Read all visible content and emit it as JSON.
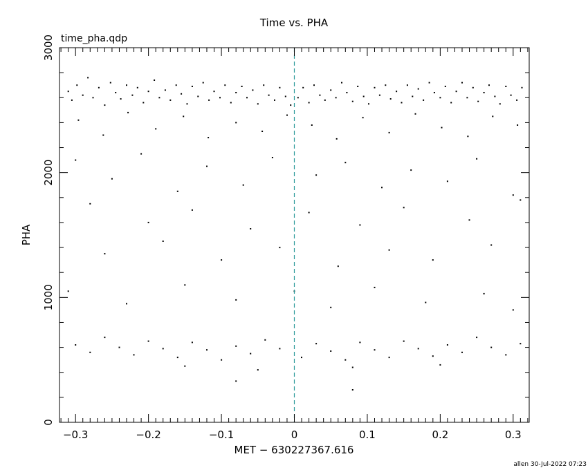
{
  "chart_data": {
    "type": "scatter",
    "title": "Time vs. PHA",
    "subtitle": "time_pha.qdp",
    "xlabel": "MET − 630227367.616",
    "ylabel": "PHA",
    "xlim": [
      -0.322,
      0.322
    ],
    "ylim": [
      0,
      3000
    ],
    "x_ticks": [
      {
        "value": -0.3,
        "label": "−0.3"
      },
      {
        "value": -0.2,
        "label": "−0.2"
      },
      {
        "value": -0.1,
        "label": "−0.1"
      },
      {
        "value": 0,
        "label": "0"
      },
      {
        "value": 0.1,
        "label": "0.1"
      },
      {
        "value": 0.2,
        "label": "0.2"
      },
      {
        "value": 0.3,
        "label": "0.3"
      }
    ],
    "y_ticks": [
      {
        "value": 0,
        "label": "0"
      },
      {
        "value": 1000,
        "label": "1000"
      },
      {
        "value": 2000,
        "label": "2000"
      },
      {
        "value": 3000,
        "label": "3000"
      }
    ],
    "reference_line": {
      "x": 0,
      "color": "#2a9a9a",
      "style": "dashed"
    },
    "point_color": "#000000",
    "grid": false,
    "series": [
      {
        "points": [
          [
            -0.31,
            2650
          ],
          [
            -0.305,
            2580
          ],
          [
            -0.298,
            2700
          ],
          [
            -0.29,
            2620
          ],
          [
            -0.283,
            2760
          ],
          [
            -0.276,
            2600
          ],
          [
            -0.268,
            2680
          ],
          [
            -0.26,
            2540
          ],
          [
            -0.252,
            2720
          ],
          [
            -0.245,
            2640
          ],
          [
            -0.238,
            2590
          ],
          [
            -0.23,
            2700
          ],
          [
            -0.222,
            2620
          ],
          [
            -0.215,
            2680
          ],
          [
            -0.207,
            2560
          ],
          [
            -0.2,
            2650
          ],
          [
            -0.192,
            2740
          ],
          [
            -0.185,
            2600
          ],
          [
            -0.177,
            2660
          ],
          [
            -0.17,
            2580
          ],
          [
            -0.162,
            2700
          ],
          [
            -0.155,
            2630
          ],
          [
            -0.147,
            2550
          ],
          [
            -0.14,
            2690
          ],
          [
            -0.132,
            2610
          ],
          [
            -0.125,
            2720
          ],
          [
            -0.117,
            2580
          ],
          [
            -0.11,
            2650
          ],
          [
            -0.102,
            2600
          ],
          [
            -0.095,
            2700
          ],
          [
            -0.087,
            2560
          ],
          [
            -0.08,
            2640
          ],
          [
            -0.072,
            2690
          ],
          [
            -0.065,
            2600
          ],
          [
            -0.057,
            2660
          ],
          [
            -0.05,
            2550
          ],
          [
            -0.042,
            2700
          ],
          [
            -0.035,
            2620
          ],
          [
            -0.027,
            2580
          ],
          [
            -0.02,
            2680
          ],
          [
            -0.012,
            2610
          ],
          [
            -0.005,
            2540
          ],
          [
            0.005,
            2600
          ],
          [
            0.012,
            2680
          ],
          [
            0.02,
            2560
          ],
          [
            0.027,
            2700
          ],
          [
            0.035,
            2620
          ],
          [
            0.042,
            2580
          ],
          [
            0.05,
            2660
          ],
          [
            0.057,
            2600
          ],
          [
            0.065,
            2720
          ],
          [
            0.072,
            2640
          ],
          [
            0.08,
            2570
          ],
          [
            0.087,
            2690
          ],
          [
            0.095,
            2610
          ],
          [
            0.102,
            2550
          ],
          [
            0.11,
            2680
          ],
          [
            0.117,
            2620
          ],
          [
            0.125,
            2700
          ],
          [
            0.132,
            2590
          ],
          [
            0.14,
            2650
          ],
          [
            0.147,
            2560
          ],
          [
            0.155,
            2700
          ],
          [
            0.162,
            2610
          ],
          [
            0.17,
            2670
          ],
          [
            0.177,
            2580
          ],
          [
            0.185,
            2720
          ],
          [
            0.192,
            2640
          ],
          [
            0.2,
            2600
          ],
          [
            0.207,
            2690
          ],
          [
            0.215,
            2560
          ],
          [
            0.222,
            2650
          ],
          [
            0.23,
            2720
          ],
          [
            0.237,
            2600
          ],
          [
            0.245,
            2680
          ],
          [
            0.252,
            2570
          ],
          [
            0.26,
            2640
          ],
          [
            0.267,
            2700
          ],
          [
            0.275,
            2610
          ],
          [
            0.282,
            2550
          ],
          [
            0.29,
            2690
          ],
          [
            0.297,
            2620
          ],
          [
            0.305,
            2580
          ],
          [
            0.312,
            2680
          ],
          [
            -0.296,
            2420
          ],
          [
            -0.262,
            2300
          ],
          [
            -0.228,
            2480
          ],
          [
            -0.19,
            2350
          ],
          [
            -0.152,
            2450
          ],
          [
            -0.118,
            2280
          ],
          [
            -0.08,
            2400
          ],
          [
            -0.044,
            2330
          ],
          [
            -0.01,
            2460
          ],
          [
            0.024,
            2380
          ],
          [
            0.058,
            2270
          ],
          [
            0.094,
            2440
          ],
          [
            0.13,
            2320
          ],
          [
            0.166,
            2470
          ],
          [
            0.202,
            2360
          ],
          [
            0.238,
            2290
          ],
          [
            0.272,
            2450
          ],
          [
            0.306,
            2380
          ],
          [
            -0.3,
            2100
          ],
          [
            -0.25,
            1950
          ],
          [
            -0.21,
            2150
          ],
          [
            -0.16,
            1850
          ],
          [
            -0.12,
            2050
          ],
          [
            -0.07,
            1900
          ],
          [
            -0.03,
            2120
          ],
          [
            0.03,
            1980
          ],
          [
            0.07,
            2080
          ],
          [
            0.12,
            1880
          ],
          [
            0.16,
            2020
          ],
          [
            0.21,
            1930
          ],
          [
            0.25,
            2110
          ],
          [
            0.3,
            1820
          ],
          [
            -0.28,
            1750
          ],
          [
            -0.2,
            1600
          ],
          [
            -0.14,
            1700
          ],
          [
            -0.06,
            1550
          ],
          [
            0.02,
            1680
          ],
          [
            0.09,
            1580
          ],
          [
            0.15,
            1720
          ],
          [
            0.24,
            1620
          ],
          [
            0.31,
            1780
          ],
          [
            -0.26,
            1350
          ],
          [
            -0.18,
            1450
          ],
          [
            -0.1,
            1300
          ],
          [
            -0.02,
            1400
          ],
          [
            0.06,
            1250
          ],
          [
            0.13,
            1380
          ],
          [
            0.19,
            1300
          ],
          [
            0.27,
            1420
          ],
          [
            -0.31,
            1050
          ],
          [
            -0.23,
            950
          ],
          [
            -0.15,
            1100
          ],
          [
            -0.08,
            980
          ],
          [
            0.0,
            1050
          ],
          [
            0.05,
            920
          ],
          [
            0.11,
            1080
          ],
          [
            0.18,
            960
          ],
          [
            0.26,
            1030
          ],
          [
            0.3,
            900
          ],
          [
            -0.3,
            620
          ],
          [
            -0.28,
            560
          ],
          [
            -0.26,
            680
          ],
          [
            -0.24,
            600
          ],
          [
            -0.22,
            540
          ],
          [
            -0.2,
            650
          ],
          [
            -0.18,
            590
          ],
          [
            -0.16,
            520
          ],
          [
            -0.14,
            640
          ],
          [
            -0.12,
            580
          ],
          [
            -0.1,
            500
          ],
          [
            -0.08,
            610
          ],
          [
            -0.06,
            550
          ],
          [
            -0.04,
            660
          ],
          [
            -0.02,
            590
          ],
          [
            0.01,
            520
          ],
          [
            0.03,
            630
          ],
          [
            0.05,
            570
          ],
          [
            0.07,
            500
          ],
          [
            0.09,
            640
          ],
          [
            0.11,
            580
          ],
          [
            0.13,
            520
          ],
          [
            0.15,
            650
          ],
          [
            0.17,
            590
          ],
          [
            0.19,
            530
          ],
          [
            0.21,
            620
          ],
          [
            0.23,
            560
          ],
          [
            0.25,
            680
          ],
          [
            0.27,
            600
          ],
          [
            0.29,
            540
          ],
          [
            0.31,
            630
          ],
          [
            -0.15,
            450
          ],
          [
            -0.05,
            420
          ],
          [
            0.08,
            440
          ],
          [
            0.2,
            460
          ],
          [
            -0.08,
            330
          ],
          [
            0.08,
            260
          ]
        ]
      }
    ]
  },
  "footer": {
    "credit": "allen 30-Jul-2022 07:23"
  }
}
